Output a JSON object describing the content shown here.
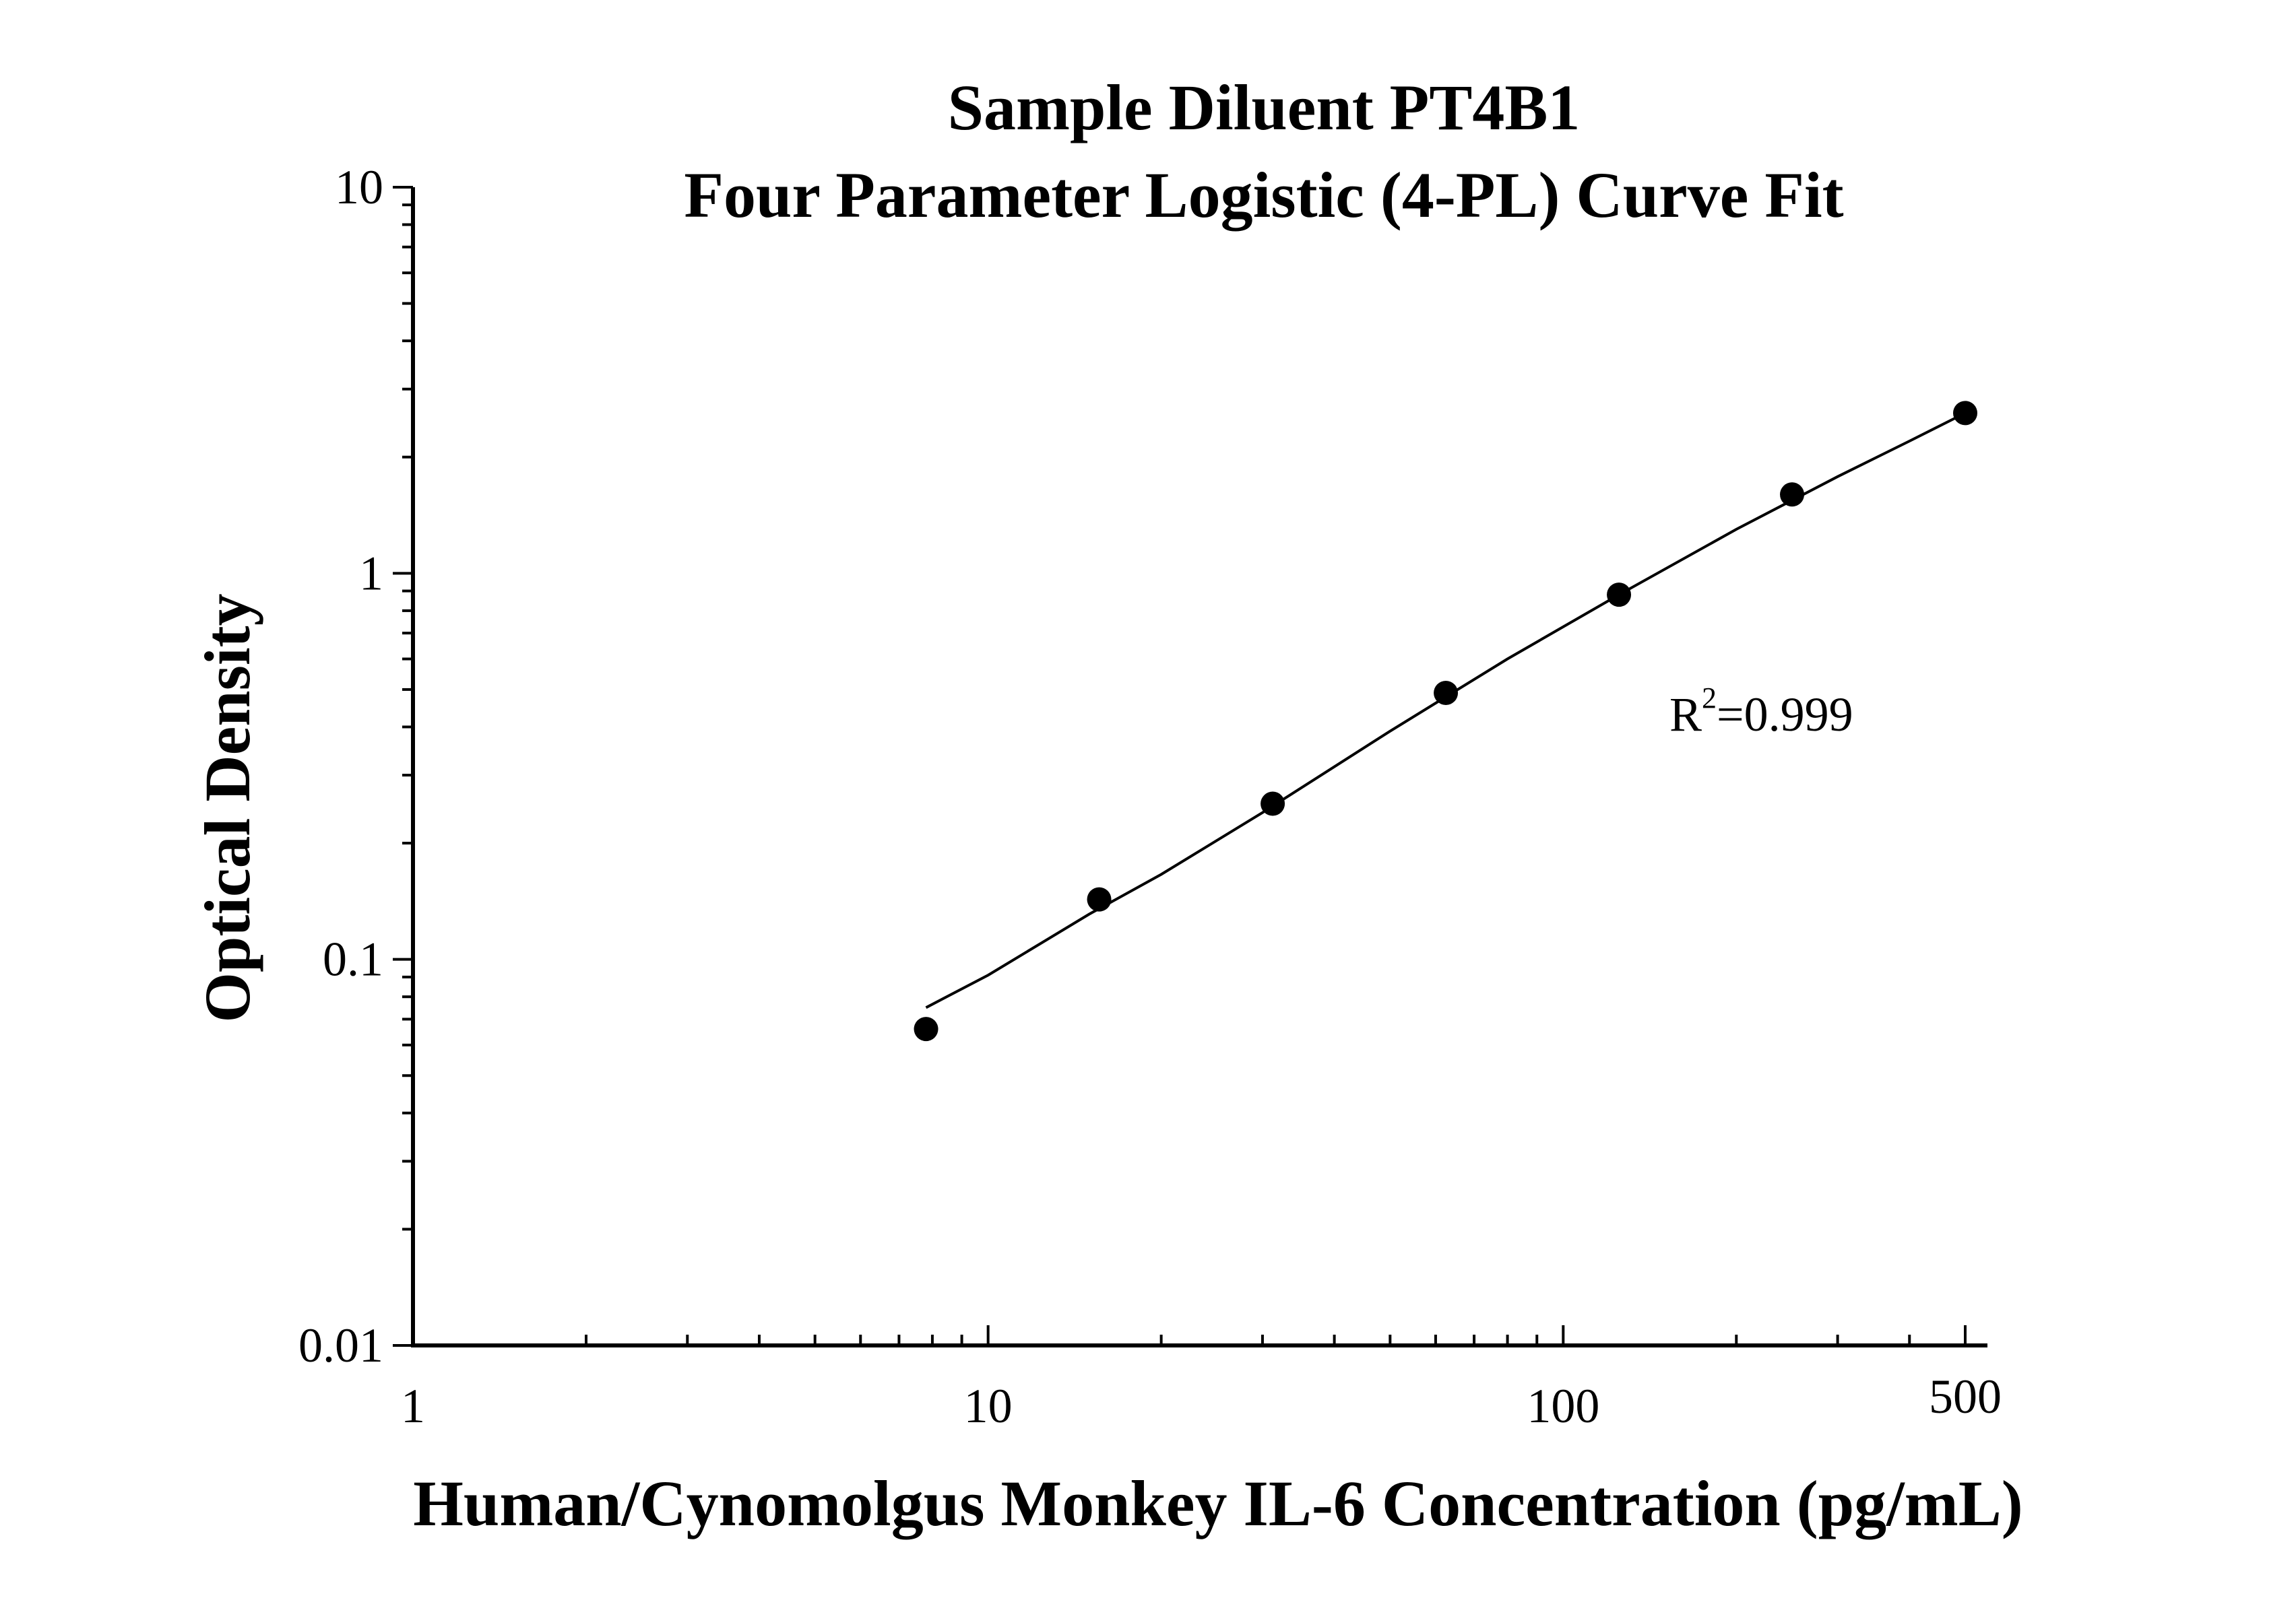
{
  "chart_data": {
    "type": "scatter",
    "title": "Sample Diluent PT4B1",
    "subtitle": "Four Parameter Logistic (4-PL) Curve Fit",
    "xlabel": "Human/Cynomolgus Monkey IL-6 Concentration (pg/mL)",
    "ylabel": "Optical Density",
    "x_scale": "log",
    "y_scale": "log",
    "xlim": [
      1,
      500
    ],
    "ylim": [
      0.01,
      10
    ],
    "x_ticks": [
      {
        "value": 1,
        "label": "1"
      },
      {
        "value": 10,
        "label": "10"
      },
      {
        "value": 100,
        "label": "100"
      },
      {
        "value": 500,
        "label": "500"
      }
    ],
    "y_ticks": [
      {
        "value": 0.01,
        "label": "0.01"
      },
      {
        "value": 0.1,
        "label": "0.1"
      },
      {
        "value": 1,
        "label": "1"
      },
      {
        "value": 10,
        "label": "10"
      }
    ],
    "grid": false,
    "legend": "none",
    "series": [
      {
        "kind": "points",
        "color": "#000000",
        "x": [
          7.8,
          15.6,
          31.25,
          62.5,
          125,
          250,
          500
        ],
        "y": [
          0.066,
          0.143,
          0.253,
          0.49,
          0.88,
          1.6,
          2.6
        ]
      },
      {
        "kind": "fit-curve",
        "color": "#000000",
        "x": [
          7.8,
          10,
          15,
          20,
          30,
          50,
          80,
          125,
          200,
          300,
          400,
          500
        ],
        "y": [
          0.075,
          0.091,
          0.131,
          0.166,
          0.24,
          0.39,
          0.6,
          0.88,
          1.3,
          1.78,
          2.2,
          2.6
        ]
      }
    ],
    "annotations": [
      {
        "base": "R",
        "superscript": "2",
        "suffix": "=0.999",
        "position": "right-middle"
      }
    ]
  }
}
